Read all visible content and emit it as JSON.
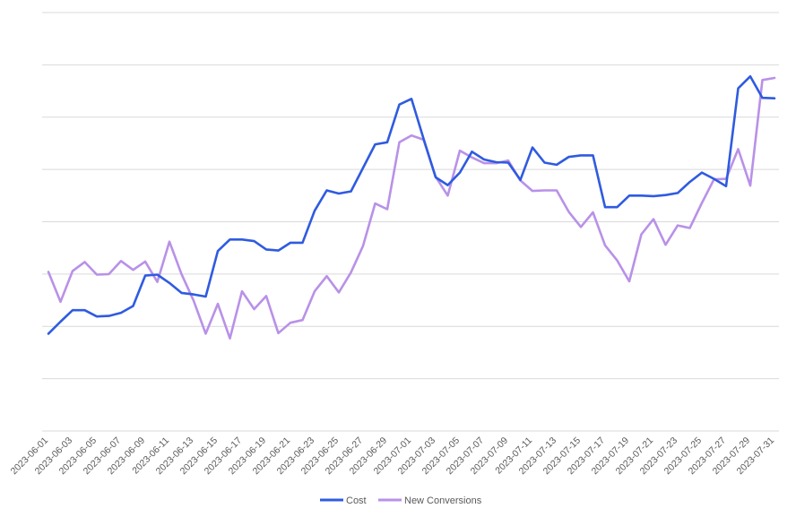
{
  "chart_data": {
    "type": "line",
    "title": "",
    "xlabel": "",
    "ylabel": "",
    "grid": true,
    "legend_position": "bottom",
    "y_tick_labels_shown": false,
    "ylim": [
      0,
      8
    ],
    "x": [
      "2023-06-01",
      "2023-06-02",
      "2023-06-03",
      "2023-06-04",
      "2023-06-05",
      "2023-06-06",
      "2023-06-07",
      "2023-06-08",
      "2023-06-09",
      "2023-06-10",
      "2023-06-11",
      "2023-06-12",
      "2023-06-13",
      "2023-06-14",
      "2023-06-15",
      "2023-06-16",
      "2023-06-17",
      "2023-06-18",
      "2023-06-19",
      "2023-06-20",
      "2023-06-21",
      "2023-06-22",
      "2023-06-23",
      "2023-06-24",
      "2023-06-25",
      "2023-06-26",
      "2023-06-27",
      "2023-06-28",
      "2023-06-29",
      "2023-06-30",
      "2023-07-01",
      "2023-07-02",
      "2023-07-03",
      "2023-07-04",
      "2023-07-05",
      "2023-07-06",
      "2023-07-07",
      "2023-07-08",
      "2023-07-09",
      "2023-07-10",
      "2023-07-11",
      "2023-07-12",
      "2023-07-13",
      "2023-07-14",
      "2023-07-15",
      "2023-07-16",
      "2023-07-17",
      "2023-07-18",
      "2023-07-19",
      "2023-07-20",
      "2023-07-21",
      "2023-07-22",
      "2023-07-23",
      "2023-07-24",
      "2023-07-25",
      "2023-07-26",
      "2023-07-27",
      "2023-07-28",
      "2023-07-29",
      "2023-07-30",
      "2023-07-31"
    ],
    "x_tick_labels": [
      "2023-06-01",
      "2023-06-03",
      "2023-06-05",
      "2023-06-07",
      "2023-06-09",
      "2023-06-11",
      "2023-06-13",
      "2023-06-15",
      "2023-06-17",
      "2023-06-19",
      "2023-06-21",
      "2023-06-23",
      "2023-06-25",
      "2023-06-27",
      "2023-06-29",
      "2023-07-01",
      "2023-07-03",
      "2023-07-05",
      "2023-07-07",
      "2023-07-09",
      "2023-07-11",
      "2023-07-13",
      "2023-07-15",
      "2023-07-17",
      "2023-07-19",
      "2023-07-21",
      "2023-07-23",
      "2023-07-25",
      "2023-07-27",
      "2023-07-29",
      "2023-07-31"
    ],
    "series": [
      {
        "name": "Cost",
        "color": "#2f5be0",
        "values": [
          1.86,
          2.09,
          2.31,
          2.31,
          2.19,
          2.2,
          2.26,
          2.39,
          2.97,
          2.99,
          2.83,
          2.64,
          2.61,
          2.57,
          3.44,
          3.66,
          3.66,
          3.63,
          3.47,
          3.45,
          3.6,
          3.6,
          4.21,
          4.6,
          4.54,
          4.58,
          5.03,
          5.48,
          5.52,
          6.24,
          6.35,
          5.59,
          4.85,
          4.7,
          4.94,
          5.34,
          5.19,
          5.14,
          5.13,
          4.8,
          5.42,
          5.13,
          5.09,
          5.24,
          5.27,
          5.27,
          4.28,
          4.28,
          4.5,
          4.5,
          4.49,
          4.51,
          4.55,
          4.76,
          4.94,
          4.82,
          4.68,
          6.55,
          6.78,
          6.37,
          6.36
        ]
      },
      {
        "name": "New Conversions",
        "color": "#b991e8",
        "values": [
          3.04,
          2.47,
          3.06,
          3.23,
          2.99,
          3.0,
          3.25,
          3.08,
          3.24,
          2.85,
          3.62,
          3.0,
          2.49,
          1.86,
          2.43,
          1.77,
          2.67,
          2.33,
          2.58,
          1.87,
          2.07,
          2.12,
          2.67,
          2.96,
          2.65,
          3.03,
          3.54,
          4.35,
          4.24,
          5.52,
          5.65,
          5.57,
          4.86,
          4.5,
          5.36,
          5.23,
          5.12,
          5.12,
          5.17,
          4.79,
          4.59,
          4.6,
          4.6,
          4.19,
          3.9,
          4.18,
          3.55,
          3.26,
          2.86,
          3.76,
          4.05,
          3.56,
          3.93,
          3.88,
          4.36,
          4.81,
          4.82,
          5.39,
          4.69,
          6.71,
          6.75
        ]
      }
    ]
  }
}
